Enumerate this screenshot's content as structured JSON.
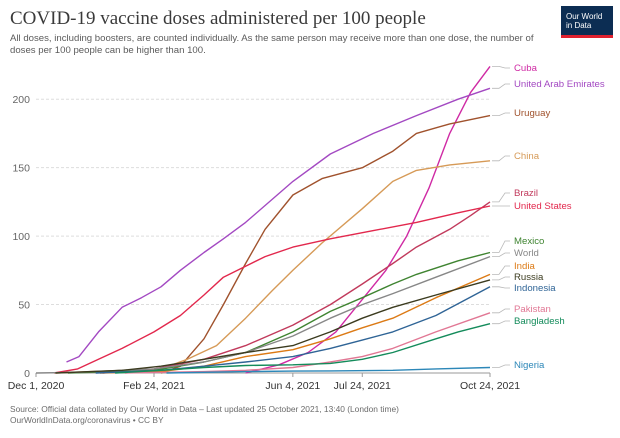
{
  "header": {
    "title": "COVID-19 vaccine doses administered per 100 people",
    "subtitle": "All doses, including boosters, are counted individually. As the same person may receive more than one dose, the number of doses per 100 people can be higher than 100."
  },
  "logo": {
    "line1": "Our World",
    "line2": "in Data"
  },
  "footer": {
    "source_line1": "Source: Official data collated by Our World in Data – Last updated 25 October 2021, 13:40 (London time)",
    "source_line2": "OurWorldInData.org/coronavirus • CC BY"
  },
  "chart_data": {
    "type": "line",
    "title": "COVID-19 vaccine doses administered per 100 people",
    "subtitle": "All doses, including boosters, are counted individually. As the same person may receive more than one dose, the number of doses per 100 people can be higher than 100.",
    "xlabel": "",
    "ylabel": "",
    "x_type": "date",
    "xlim": [
      "2020-12-01",
      "2021-10-24"
    ],
    "ylim": [
      0,
      225
    ],
    "y_ticks": [
      0,
      50,
      100,
      150,
      200
    ],
    "x_ticks": [
      {
        "date": "2020-12-01",
        "label": "Dec 1, 2020"
      },
      {
        "date": "2021-02-24",
        "label": "Feb 24, 2021"
      },
      {
        "date": "2021-06-04",
        "label": "Jun 4, 2021"
      },
      {
        "date": "2021-07-24",
        "label": "Jul 24, 2021"
      },
      {
        "date": "2021-10-24",
        "label": "Oct 24, 2021"
      }
    ],
    "grid": "horizontal dashed",
    "legend": "labels at right end of lines",
    "series": [
      {
        "name": "Cuba",
        "color": "#cf2aa4",
        "points": [
          [
            "2021-05-01",
            0
          ],
          [
            "2021-05-25",
            6
          ],
          [
            "2021-06-15",
            15
          ],
          [
            "2021-07-05",
            30
          ],
          [
            "2021-07-25",
            55
          ],
          [
            "2021-08-10",
            75
          ],
          [
            "2021-08-25",
            100
          ],
          [
            "2021-09-10",
            135
          ],
          [
            "2021-09-25",
            175
          ],
          [
            "2021-10-10",
            205
          ],
          [
            "2021-10-24",
            224
          ]
        ]
      },
      {
        "name": "United Arab Emirates",
        "color": "#a349c2",
        "points": [
          [
            "2020-12-23",
            8
          ],
          [
            "2021-01-01",
            12
          ],
          [
            "2021-01-15",
            30
          ],
          [
            "2021-02-01",
            48
          ],
          [
            "2021-02-15",
            55
          ],
          [
            "2021-03-01",
            63
          ],
          [
            "2021-03-15",
            75
          ],
          [
            "2021-04-01",
            88
          ],
          [
            "2021-04-15",
            98
          ],
          [
            "2021-05-01",
            110
          ],
          [
            "2021-06-04",
            140
          ],
          [
            "2021-07-01",
            160
          ],
          [
            "2021-08-01",
            175
          ],
          [
            "2021-09-01",
            188
          ],
          [
            "2021-10-01",
            200
          ],
          [
            "2021-10-24",
            208
          ]
        ]
      },
      {
        "name": "Uruguay",
        "color": "#a0522d",
        "points": [
          [
            "2021-03-01",
            0
          ],
          [
            "2021-03-15",
            5
          ],
          [
            "2021-04-01",
            25
          ],
          [
            "2021-04-15",
            50
          ],
          [
            "2021-05-01",
            80
          ],
          [
            "2021-05-15",
            105
          ],
          [
            "2021-06-04",
            130
          ],
          [
            "2021-06-25",
            142
          ],
          [
            "2021-07-24",
            150
          ],
          [
            "2021-08-15",
            162
          ],
          [
            "2021-09-01",
            175
          ],
          [
            "2021-09-25",
            182
          ],
          [
            "2021-10-24",
            188
          ]
        ]
      },
      {
        "name": "China",
        "color": "#d69a57",
        "points": [
          [
            "2020-12-15",
            0
          ],
          [
            "2021-03-01",
            3
          ],
          [
            "2021-03-20",
            10
          ],
          [
            "2021-04-10",
            20
          ],
          [
            "2021-05-01",
            40
          ],
          [
            "2021-05-20",
            60
          ],
          [
            "2021-06-04",
            75
          ],
          [
            "2021-06-25",
            95
          ],
          [
            "2021-07-24",
            120
          ],
          [
            "2021-08-15",
            140
          ],
          [
            "2021-09-01",
            148
          ],
          [
            "2021-09-25",
            152
          ],
          [
            "2021-10-24",
            155
          ]
        ]
      },
      {
        "name": "Brazil",
        "color": "#c13a5c",
        "points": [
          [
            "2021-01-18",
            0
          ],
          [
            "2021-02-24",
            3
          ],
          [
            "2021-04-01",
            10
          ],
          [
            "2021-05-01",
            20
          ],
          [
            "2021-06-04",
            35
          ],
          [
            "2021-07-01",
            50
          ],
          [
            "2021-07-24",
            65
          ],
          [
            "2021-08-15",
            80
          ],
          [
            "2021-09-01",
            92
          ],
          [
            "2021-09-25",
            105
          ],
          [
            "2021-10-10",
            115
          ],
          [
            "2021-10-24",
            125
          ]
        ]
      },
      {
        "name": "United States",
        "color": "#e2284d",
        "points": [
          [
            "2020-12-14",
            0
          ],
          [
            "2020-12-31",
            3
          ],
          [
            "2021-01-15",
            10
          ],
          [
            "2021-02-01",
            18
          ],
          [
            "2021-02-24",
            30
          ],
          [
            "2021-03-15",
            42
          ],
          [
            "2021-04-01",
            57
          ],
          [
            "2021-04-15",
            70
          ],
          [
            "2021-05-01",
            78
          ],
          [
            "2021-05-15",
            85
          ],
          [
            "2021-06-04",
            92
          ],
          [
            "2021-07-01",
            98
          ],
          [
            "2021-08-01",
            104
          ],
          [
            "2021-09-01",
            110
          ],
          [
            "2021-10-01",
            117
          ],
          [
            "2021-10-24",
            122
          ]
        ]
      },
      {
        "name": "Mexico",
        "color": "#3f8431",
        "points": [
          [
            "2020-12-24",
            0
          ],
          [
            "2021-02-24",
            2
          ],
          [
            "2021-04-01",
            8
          ],
          [
            "2021-05-01",
            15
          ],
          [
            "2021-06-04",
            30
          ],
          [
            "2021-07-01",
            45
          ],
          [
            "2021-07-24",
            55
          ],
          [
            "2021-08-15",
            65
          ],
          [
            "2021-09-01",
            72
          ],
          [
            "2021-10-01",
            82
          ],
          [
            "2021-10-24",
            88
          ]
        ]
      },
      {
        "name": "World",
        "color": "#878787",
        "points": [
          [
            "2020-12-01",
            0
          ],
          [
            "2021-01-01",
            0.5
          ],
          [
            "2021-02-24",
            3
          ],
          [
            "2021-04-01",
            8
          ],
          [
            "2021-05-01",
            15
          ],
          [
            "2021-06-04",
            27
          ],
          [
            "2021-07-01",
            40
          ],
          [
            "2021-07-24",
            50
          ],
          [
            "2021-08-15",
            58
          ],
          [
            "2021-09-15",
            70
          ],
          [
            "2021-10-24",
            85
          ]
        ]
      },
      {
        "name": "India",
        "color": "#dc7a15",
        "points": [
          [
            "2021-01-16",
            0
          ],
          [
            "2021-03-01",
            1
          ],
          [
            "2021-04-01",
            5
          ],
          [
            "2021-05-01",
            12
          ],
          [
            "2021-06-04",
            17
          ],
          [
            "2021-07-01",
            25
          ],
          [
            "2021-07-24",
            33
          ],
          [
            "2021-08-15",
            40
          ],
          [
            "2021-09-15",
            55
          ],
          [
            "2021-10-24",
            72
          ]
        ]
      },
      {
        "name": "Russia",
        "color": "#3b3b1f",
        "points": [
          [
            "2020-12-15",
            0
          ],
          [
            "2021-02-01",
            2
          ],
          [
            "2021-03-01",
            5
          ],
          [
            "2021-04-01",
            10
          ],
          [
            "2021-05-01",
            15
          ],
          [
            "2021-06-04",
            20
          ],
          [
            "2021-07-01",
            30
          ],
          [
            "2021-07-24",
            40
          ],
          [
            "2021-08-15",
            48
          ],
          [
            "2021-09-15",
            57
          ],
          [
            "2021-10-24",
            68
          ]
        ]
      },
      {
        "name": "Indonesia",
        "color": "#2f6496",
        "points": [
          [
            "2021-01-13",
            0
          ],
          [
            "2021-03-01",
            2
          ],
          [
            "2021-04-01",
            5
          ],
          [
            "2021-05-01",
            8
          ],
          [
            "2021-06-04",
            12
          ],
          [
            "2021-07-01",
            18
          ],
          [
            "2021-07-24",
            24
          ],
          [
            "2021-08-15",
            30
          ],
          [
            "2021-09-15",
            42
          ],
          [
            "2021-10-24",
            63
          ]
        ]
      },
      {
        "name": "Pakistan",
        "color": "#e17794",
        "points": [
          [
            "2021-02-03",
            0
          ],
          [
            "2021-04-01",
            1
          ],
          [
            "2021-05-01",
            2
          ],
          [
            "2021-06-04",
            4
          ],
          [
            "2021-07-01",
            8
          ],
          [
            "2021-07-24",
            12
          ],
          [
            "2021-08-15",
            18
          ],
          [
            "2021-09-15",
            30
          ],
          [
            "2021-10-24",
            44
          ]
        ]
      },
      {
        "name": "Bangladesh",
        "color": "#148b5b",
        "points": [
          [
            "2021-01-27",
            0
          ],
          [
            "2021-03-01",
            2
          ],
          [
            "2021-04-01",
            4
          ],
          [
            "2021-05-01",
            5.5
          ],
          [
            "2021-06-04",
            6
          ],
          [
            "2021-07-01",
            7
          ],
          [
            "2021-07-24",
            10
          ],
          [
            "2021-08-15",
            15
          ],
          [
            "2021-09-15",
            25
          ],
          [
            "2021-10-01",
            30
          ],
          [
            "2021-10-24",
            36
          ]
        ]
      },
      {
        "name": "Nigeria",
        "color": "#2c87b8",
        "points": [
          [
            "2021-03-05",
            0
          ],
          [
            "2021-04-01",
            0.5
          ],
          [
            "2021-05-01",
            1
          ],
          [
            "2021-06-04",
            1.4
          ],
          [
            "2021-07-01",
            1.5
          ],
          [
            "2021-08-15",
            2
          ],
          [
            "2021-09-15",
            3
          ],
          [
            "2021-10-24",
            4
          ]
        ]
      }
    ]
  }
}
